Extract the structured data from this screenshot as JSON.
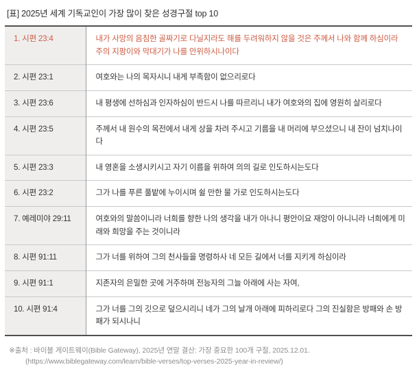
{
  "title": "[표] 2025년 세계 기독교인이 가장 많이 찾은 성경구절 top 10",
  "colors": {
    "accent": "#cc5a41",
    "rank_cell_background": "#efeeed",
    "text": "#333333",
    "muted": "#8c8c8c"
  },
  "table": {
    "rows": [
      {
        "rank_ref": "1. 시편 23:4",
        "verse": "내가 사망의 음침한 골짜기로 다닐지라도 해를 두려워하지 않을 것은 주께서 나와 함께 하심이라 주의 지팡이와 막대기가 나를 안위하시나이다",
        "highlight": true
      },
      {
        "rank_ref": "2. 시편 23:1",
        "verse": "여호와는 나의 목자시니 내게 부족함이 없으리로다",
        "highlight": false
      },
      {
        "rank_ref": "3. 시편 23:6",
        "verse": "내 평생에 선하심과 인자하심이 반드시 나를 따르리니 내가 여호와의 집에 영원히 살리로다",
        "highlight": false
      },
      {
        "rank_ref": "4. 시편 23:5",
        "verse": "주께서 내 원수의 목전에서 내게 상을 차려 주시고 기름을 내 머리에 부으셨으니 내 잔이 넘치나이다",
        "highlight": false
      },
      {
        "rank_ref": "5. 시편 23:3",
        "verse": "내 영혼을 소생시키시고 자기 이름을 위하여 의의 길로 인도하시는도다",
        "highlight": false
      },
      {
        "rank_ref": "6. 시편 23:2",
        "verse": "그가 나를 푸른 풀밭에 누이시며 쉴 만한 물 가로 인도하시는도다",
        "highlight": false
      },
      {
        "rank_ref": "7. 예레미야 29:11",
        "verse": "여호와의 말씀이니라 너희를 향한 나의 생각을 내가 아나니 평안이요 재앙이 아니니라 너희에게 미래와 희망을 주는 것이니라",
        "highlight": false
      },
      {
        "rank_ref": "8. 시편 91:11",
        "verse": "그가 너를 위하여 그의 천사들을 명령하사 네 모든 길에서 너를 지키게 하심이라",
        "highlight": false
      },
      {
        "rank_ref": "9. 시편 91:1",
        "verse": "지존자의 은밀한 곳에 거주하며 전능자의 그늘 아래에 사는 자여,",
        "highlight": false
      },
      {
        "rank_ref": "10. 시편 91:4",
        "verse": "그가 너를 그의 깃으로 덮으시리니 네가 그의 날개 아래에 피하리로다 그의 진실함은 방패와 손 방패가 되시나니",
        "highlight": false
      }
    ]
  },
  "footer": {
    "source_line": "※출처 : 바이블 게이트웨이(Bible Gateway), 2025년 연말 결산: 가장 중요한 100개 구절, 2025.12.01.",
    "url_line": "(https://www.biblegateway.com/learn/bible-verses/top-verses-2025-year-in-review/)"
  }
}
